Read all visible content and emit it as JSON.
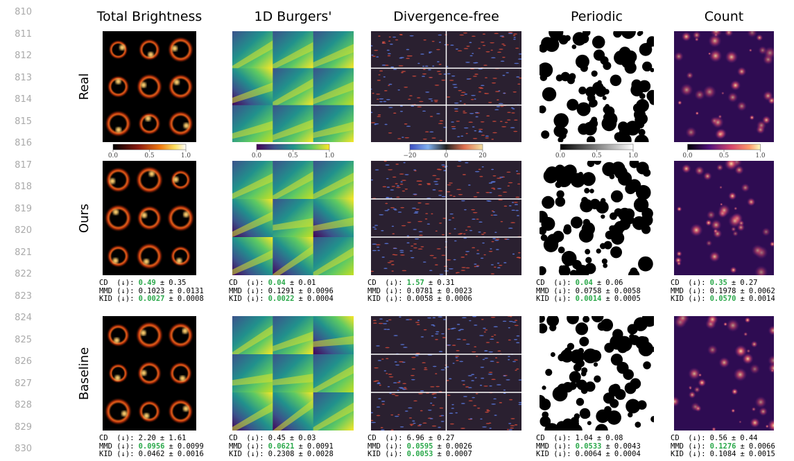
{
  "line_numbers": [
    "810",
    "811",
    "812",
    "813",
    "814",
    "815",
    "816",
    "817",
    "818",
    "819",
    "820",
    "821",
    "822",
    "823",
    "824",
    "825",
    "826",
    "827",
    "828",
    "829",
    "830"
  ],
  "rows": [
    "Real",
    "Ours",
    "Baseline"
  ],
  "pm": "±",
  "columns": [
    {
      "title": "Total Brightness",
      "colorbar_ticks": [
        "0.0",
        "0.5",
        "1.0"
      ],
      "ours": [
        {
          "label": "CD  (↓):",
          "mean": "0.49",
          "std": "0.35",
          "best": true
        },
        {
          "label": "MMD (↓):",
          "mean": "0.1023",
          "std": "0.0131",
          "best": false
        },
        {
          "label": "KID (↓):",
          "mean": "0.0027",
          "std": "0.0008",
          "best": true
        }
      ],
      "baseline": [
        {
          "label": "CD  (↓):",
          "mean": "2.20",
          "std": "1.61",
          "best": false
        },
        {
          "label": "MMD (↓):",
          "mean": "0.0956",
          "std": "0.0099",
          "best": true
        },
        {
          "label": "KID (↓):",
          "mean": "0.0462",
          "std": "0.0016",
          "best": false
        }
      ]
    },
    {
      "title": "1D Burgers'",
      "colorbar_ticks": [
        "0.0",
        "0.5",
        "1.0"
      ],
      "ours": [
        {
          "label": "CD  (↓):",
          "mean": "0.04",
          "std": "0.01",
          "best": true
        },
        {
          "label": "MMD (↓):",
          "mean": "0.1291",
          "std": "0.0096",
          "best": false
        },
        {
          "label": "KID (↓):",
          "mean": "0.0022",
          "std": "0.0004",
          "best": true
        }
      ],
      "baseline": [
        {
          "label": "CD  (↓):",
          "mean": "0.45",
          "std": "0.03",
          "best": false
        },
        {
          "label": "MMD (↓):",
          "mean": "0.0621",
          "std": "0.0091",
          "best": true
        },
        {
          "label": "KID (↓):",
          "mean": "0.2308",
          "std": "0.0028",
          "best": false
        }
      ]
    },
    {
      "title": "Divergence-free",
      "colorbar_ticks": [
        "−20",
        "0",
        "20"
      ],
      "ours": [
        {
          "label": "CD  (↓):",
          "mean": "1.57",
          "std": "0.31",
          "best": true
        },
        {
          "label": "MMD (↓):",
          "mean": "0.0781",
          "std": "0.0023",
          "best": false
        },
        {
          "label": "KID (↓):",
          "mean": "0.0058",
          "std": "0.0006",
          "best": false
        }
      ],
      "baseline": [
        {
          "label": "CD  (↓):",
          "mean": "6.96",
          "std": "0.27",
          "best": false
        },
        {
          "label": "MMD (↓):",
          "mean": "0.0595",
          "std": "0.0026",
          "best": true
        },
        {
          "label": "KID (↓):",
          "mean": "0.0053",
          "std": "0.0007",
          "best": true
        }
      ]
    },
    {
      "title": "Periodic",
      "colorbar_ticks": [
        "0.0",
        "0.5",
        "1.0"
      ],
      "ours": [
        {
          "label": "CD  (↓):",
          "mean": "0.04",
          "std": "0.06",
          "best": true
        },
        {
          "label": "MMD (↓):",
          "mean": "0.0758",
          "std": "0.0058",
          "best": false
        },
        {
          "label": "KID (↓):",
          "mean": "0.0014",
          "std": "0.0005",
          "best": true
        }
      ],
      "baseline": [
        {
          "label": "CD  (↓):",
          "mean": "1.04",
          "std": "0.08",
          "best": false
        },
        {
          "label": "MMD (↓):",
          "mean": "0.0533",
          "std": "0.0043",
          "best": true
        },
        {
          "label": "KID (↓):",
          "mean": "0.0064",
          "std": "0.0004",
          "best": false
        }
      ]
    },
    {
      "title": "Count",
      "colorbar_ticks": [
        "0.0",
        "0.5",
        "1.0"
      ],
      "ours": [
        {
          "label": "CD  (↓):",
          "mean": "0.35",
          "std": "0.27",
          "best": true
        },
        {
          "label": "MMD (↓):",
          "mean": "0.1978",
          "std": "0.0062",
          "best": false
        },
        {
          "label": "KID (↓):",
          "mean": "0.0570",
          "std": "0.0014",
          "best": true
        }
      ],
      "baseline": [
        {
          "label": "CD  (↓):",
          "mean": "0.56",
          "std": "0.44",
          "best": false
        },
        {
          "label": "MMD (↓):",
          "mean": "0.1276",
          "std": "0.0066",
          "best": true
        },
        {
          "label": "KID (↓):",
          "mean": "0.1084",
          "std": "0.0015",
          "best": false
        }
      ]
    }
  ]
}
